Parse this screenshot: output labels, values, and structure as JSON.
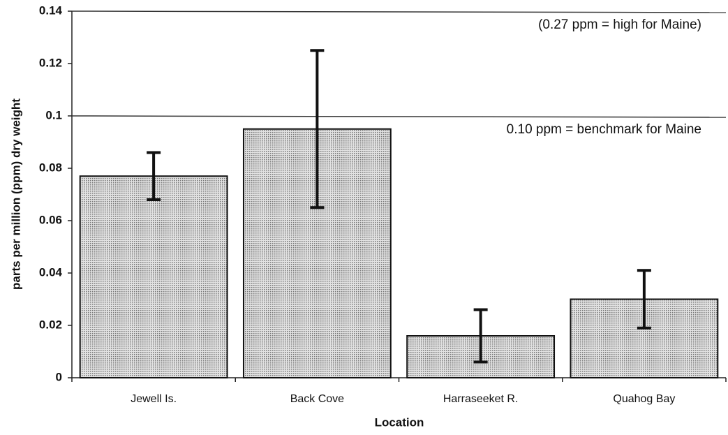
{
  "chart_data": {
    "type": "bar",
    "categories": [
      "Jewell Is.",
      "Back Cove",
      "Harraseeket R.",
      "Quahog Bay"
    ],
    "values": [
      0.077,
      0.095,
      0.016,
      0.03
    ],
    "errors": [
      0.009,
      0.03,
      0.01,
      0.011
    ],
    "color": "#c4c4c4",
    "x_label": "Location",
    "y_label": "parts per million (ppm) dry weight",
    "ylim": [
      0,
      0.14
    ],
    "yticks": [
      0,
      0.02,
      0.04,
      0.06,
      0.08,
      0.1,
      0.12,
      0.14
    ],
    "reference_lines": [
      {
        "value": 0.14,
        "label": "(0.27 ppm = high for Maine)"
      },
      {
        "value": 0.1,
        "label": "0.10 ppm = benchmark for Maine"
      }
    ],
    "grid": false
  }
}
